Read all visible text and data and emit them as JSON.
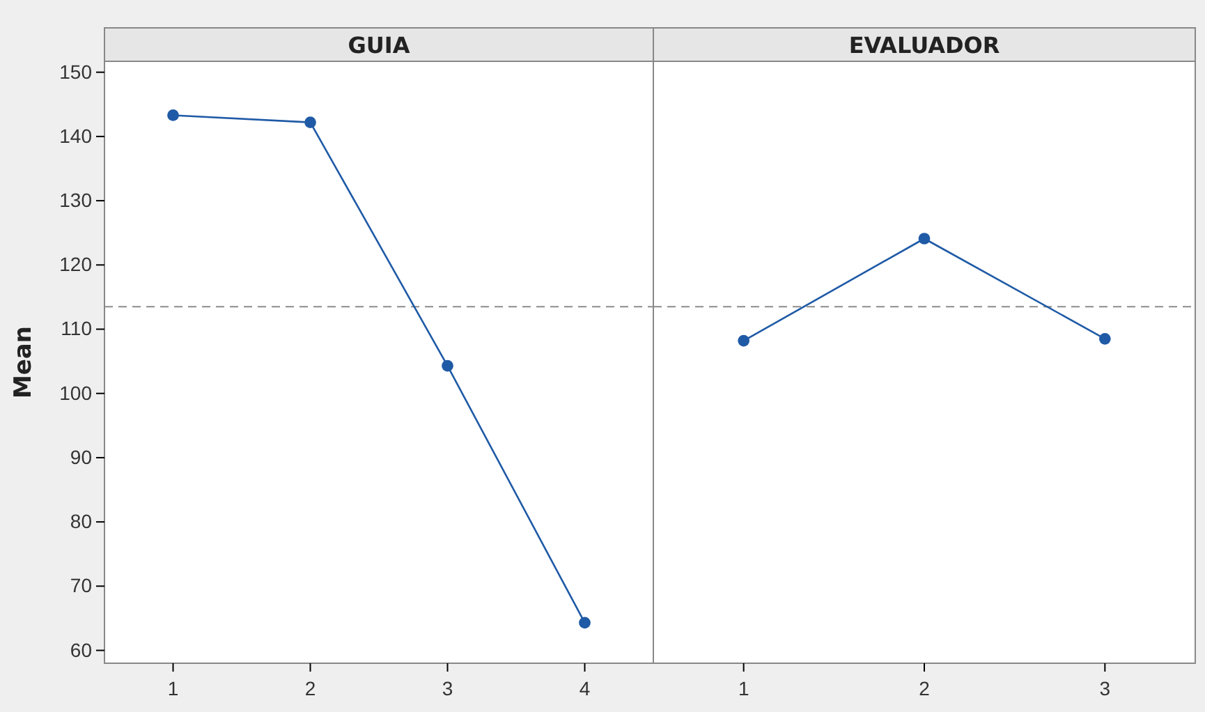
{
  "chart_data": [
    {
      "type": "line",
      "title": "GUIA",
      "ylabel": "Mean",
      "categories": [
        "1",
        "2",
        "3",
        "4"
      ],
      "series": [
        {
          "color": "#1f5aa6",
          "values": [
            143.3,
            142.2,
            104.3,
            64.3
          ]
        }
      ],
      "ylim": [
        58,
        151.7
      ],
      "yticks": [
        60,
        70,
        80,
        90,
        100,
        110,
        120,
        130,
        140,
        150
      ],
      "ref_lines": [
        {
          "axis": "y",
          "value": 113.5,
          "color": "#8c8c8c",
          "line_style": "dashed"
        }
      ],
      "marker": "circle",
      "line_style": "solid",
      "grid": false
    },
    {
      "type": "line",
      "title": "EVALUADOR",
      "categories": [
        "1",
        "2",
        "3"
      ],
      "series": [
        {
          "color": "#1f5aa6",
          "values": [
            108.2,
            124.1,
            108.5
          ]
        }
      ],
      "ylim": [
        58,
        151.7
      ],
      "yticks": [
        60,
        70,
        80,
        90,
        100,
        110,
        120,
        130,
        140,
        150
      ],
      "tick_labels": "x",
      "ref_lines": [
        {
          "axis": "y",
          "value": 113.5,
          "color": "#8c8c8c",
          "line_style": "dashed"
        }
      ],
      "marker": "circle",
      "line_style": "solid",
      "grid": false
    }
  ]
}
